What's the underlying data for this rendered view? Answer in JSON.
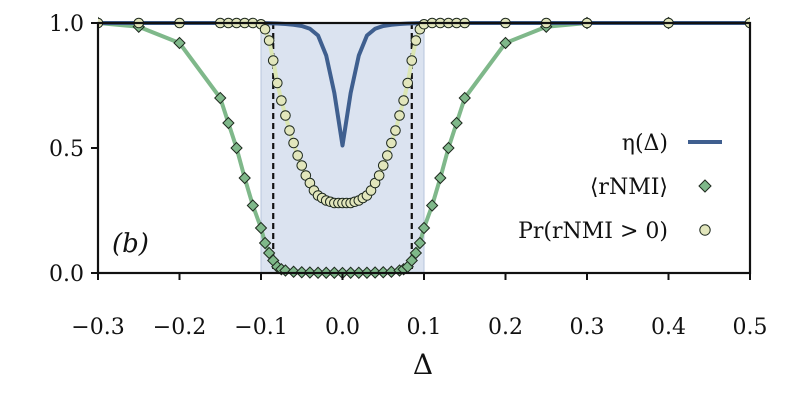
{
  "chart_data": {
    "type": "line",
    "title": "",
    "panel_label": "(b)",
    "xlabel": "Δ",
    "ylabel": "",
    "xlim": [
      -0.3,
      0.5
    ],
    "ylim": [
      0.0,
      1.0
    ],
    "xticks": [
      -0.3,
      -0.2,
      -0.1,
      0.0,
      0.1,
      0.2,
      0.3,
      0.4,
      0.5
    ],
    "xtick_labels": [
      "−0.3",
      "−0.2",
      "−0.1",
      "0.0",
      "0.1",
      "0.2",
      "0.3",
      "0.4",
      "0.5"
    ],
    "yticks": [
      0.0,
      0.5,
      1.0
    ],
    "ytick_labels": [
      "0.0",
      "0.5",
      "1.0"
    ],
    "grid": false,
    "legend_position": "right",
    "shaded_region": {
      "x": [
        -0.1,
        0.1
      ],
      "color": "#dbe3f0"
    },
    "vertical_lines": [
      -0.085,
      0.085
    ],
    "colors": {
      "eta": "#3f5f8f",
      "rnmi": "#7fb88a",
      "pr": "#e2e6bc",
      "pr_line": "#dbe6b4",
      "shade": "#dbe3f0",
      "shade_edge": "#b7c6dd"
    },
    "series": [
      {
        "name": "η(Δ)",
        "style": "line",
        "x": [
          -0.3,
          -0.1,
          -0.09,
          -0.08,
          -0.07,
          -0.06,
          -0.05,
          -0.04,
          -0.03,
          -0.02,
          -0.01,
          0.0,
          0.01,
          0.02,
          0.03,
          0.04,
          0.05,
          0.06,
          0.07,
          0.08,
          0.09,
          0.1,
          0.5
        ],
        "values": [
          1.0,
          1.0,
          0.999,
          0.998,
          0.996,
          0.993,
          0.988,
          0.977,
          0.95,
          0.87,
          0.72,
          0.51,
          0.72,
          0.87,
          0.95,
          0.977,
          0.988,
          0.993,
          0.996,
          0.998,
          0.999,
          1.0,
          1.0
        ]
      },
      {
        "name": "⟨rNMI⟩",
        "style": "line+diamond",
        "x": [
          -0.3,
          -0.25,
          -0.2,
          -0.15,
          -0.14,
          -0.13,
          -0.12,
          -0.11,
          -0.1,
          -0.095,
          -0.09,
          -0.085,
          -0.08,
          -0.075,
          -0.07,
          -0.06,
          -0.05,
          -0.04,
          -0.03,
          -0.02,
          -0.01,
          0.0,
          0.01,
          0.02,
          0.03,
          0.04,
          0.05,
          0.06,
          0.07,
          0.075,
          0.08,
          0.085,
          0.09,
          0.095,
          0.1,
          0.11,
          0.12,
          0.13,
          0.14,
          0.15,
          0.2,
          0.25,
          0.3,
          0.4,
          0.5
        ],
        "values": [
          1.0,
          0.985,
          0.92,
          0.7,
          0.6,
          0.5,
          0.38,
          0.27,
          0.18,
          0.12,
          0.08,
          0.05,
          0.025,
          0.015,
          0.01,
          0.005,
          0.003,
          0.002,
          0.001,
          0.001,
          0.001,
          0.0,
          0.001,
          0.001,
          0.001,
          0.002,
          0.003,
          0.005,
          0.01,
          0.015,
          0.025,
          0.05,
          0.08,
          0.12,
          0.18,
          0.27,
          0.38,
          0.5,
          0.6,
          0.7,
          0.92,
          0.985,
          1.0,
          1.0,
          1.0
        ]
      },
      {
        "name": "Pr(rNMI > 0)",
        "style": "line+circle",
        "x": [
          -0.3,
          -0.25,
          -0.2,
          -0.15,
          -0.14,
          -0.13,
          -0.12,
          -0.11,
          -0.1,
          -0.095,
          -0.09,
          -0.085,
          -0.08,
          -0.075,
          -0.07,
          -0.065,
          -0.06,
          -0.055,
          -0.05,
          -0.045,
          -0.04,
          -0.035,
          -0.03,
          -0.025,
          -0.02,
          -0.015,
          -0.01,
          -0.005,
          0.0,
          0.005,
          0.01,
          0.015,
          0.02,
          0.025,
          0.03,
          0.035,
          0.04,
          0.045,
          0.05,
          0.055,
          0.06,
          0.065,
          0.07,
          0.075,
          0.08,
          0.085,
          0.09,
          0.095,
          0.1,
          0.11,
          0.12,
          0.13,
          0.14,
          0.15,
          0.2,
          0.25,
          0.3,
          0.4,
          0.5
        ],
        "values": [
          1.0,
          1.0,
          1.0,
          1.0,
          1.0,
          1.0,
          1.0,
          1.0,
          0.995,
          0.975,
          0.93,
          0.85,
          0.76,
          0.69,
          0.63,
          0.57,
          0.52,
          0.47,
          0.43,
          0.39,
          0.36,
          0.33,
          0.31,
          0.3,
          0.29,
          0.285,
          0.28,
          0.28,
          0.28,
          0.28,
          0.28,
          0.285,
          0.29,
          0.3,
          0.31,
          0.33,
          0.36,
          0.39,
          0.43,
          0.47,
          0.52,
          0.57,
          0.63,
          0.69,
          0.76,
          0.85,
          0.93,
          0.975,
          0.995,
          1.0,
          1.0,
          1.0,
          1.0,
          1.0,
          1.0,
          1.0,
          1.0,
          1.0,
          1.0
        ]
      }
    ]
  }
}
